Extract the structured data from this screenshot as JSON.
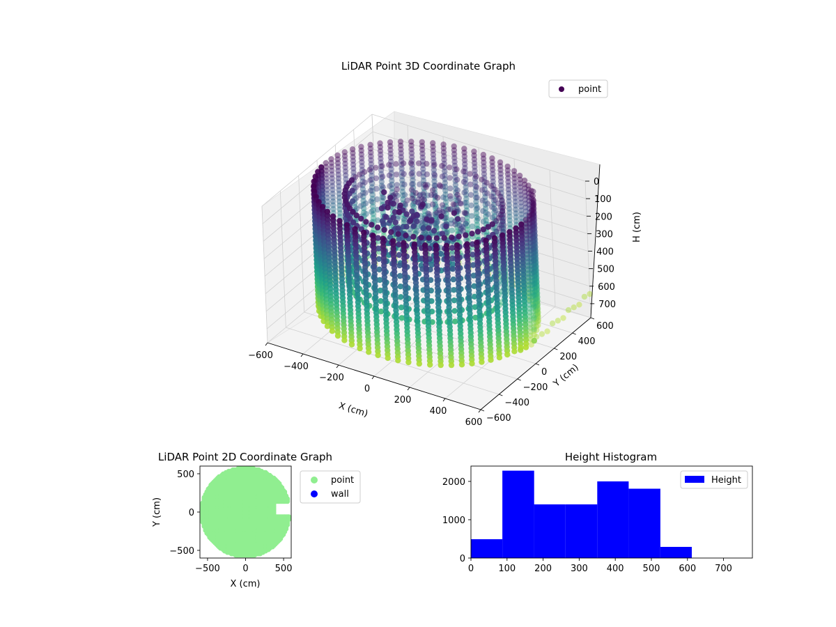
{
  "figure": {
    "background": "#ffffff"
  },
  "chart_data": [
    {
      "type": "scatter3d",
      "title": "LiDAR Point 3D Coordinate Graph",
      "xlabel": "X (cm)",
      "ylabel": "Y (cm)",
      "zlabel": "H (cm)",
      "xticks": [
        "−600",
        "−400",
        "−200",
        "0",
        "200",
        "400",
        "600"
      ],
      "yticks": [
        "−600",
        "−400",
        "−200",
        "0",
        "200",
        "400",
        "600"
      ],
      "zticks": [
        "0",
        "100",
        "200",
        "300",
        "400",
        "500",
        "600",
        "700"
      ],
      "xlim": [
        -600,
        600
      ],
      "ylim": [
        -600,
        600
      ],
      "zlim": [
        0,
        780
      ],
      "z_inverted": true,
      "legend": {
        "label": "point",
        "placement": "top-right"
      },
      "colormap": "viridis",
      "marker_color": "#440154",
      "structure": {
        "ring_radius_cm": 550,
        "vertical_scan_lines": 64,
        "height_range_cm": [
          0,
          700
        ],
        "center_cluster": true,
        "stray_scan_lines": true
      }
    },
    {
      "type": "scatter",
      "title": "LiDAR Point 2D Coordinate Graph",
      "xlabel": "X (cm)",
      "ylabel": "Y (cm)",
      "xticks": [
        "−500",
        "0",
        "500"
      ],
      "yticks": [
        "−500",
        "0",
        "500"
      ],
      "xlim": [
        -600,
        600
      ],
      "ylim": [
        -600,
        600
      ],
      "grid": false,
      "legend": {
        "placement": "outside-right"
      },
      "series": [
        {
          "name": "point",
          "color": "#90ee90",
          "shape": "disc",
          "radius_cm": 580,
          "notch": {
            "x_from": 380,
            "y_from": -50,
            "y_to": 130
          }
        },
        {
          "name": "wall",
          "color": "#0000ff",
          "points": []
        }
      ]
    },
    {
      "type": "histogram",
      "title": "Height Histogram",
      "xlabel": "",
      "ylabel": "",
      "xticks": [
        "0",
        "100",
        "200",
        "300",
        "400",
        "500",
        "600",
        "700"
      ],
      "yticks": [
        "0",
        "1000",
        "2000"
      ],
      "xlim": [
        0,
        780
      ],
      "ylim": [
        0,
        2400
      ],
      "grid": false,
      "legend": {
        "label": "Height",
        "placement": "top-right"
      },
      "color": "#0000ff",
      "bins": [
        {
          "from": 0,
          "to": 87,
          "count": 490
        },
        {
          "from": 87,
          "to": 175,
          "count": 2280
        },
        {
          "from": 175,
          "to": 262,
          "count": 1400
        },
        {
          "from": 262,
          "to": 350,
          "count": 1400
        },
        {
          "from": 350,
          "to": 437,
          "count": 2000
        },
        {
          "from": 437,
          "to": 525,
          "count": 1810
        },
        {
          "from": 525,
          "to": 612,
          "count": 290
        },
        {
          "from": 612,
          "to": 700,
          "count": 0
        }
      ]
    }
  ]
}
